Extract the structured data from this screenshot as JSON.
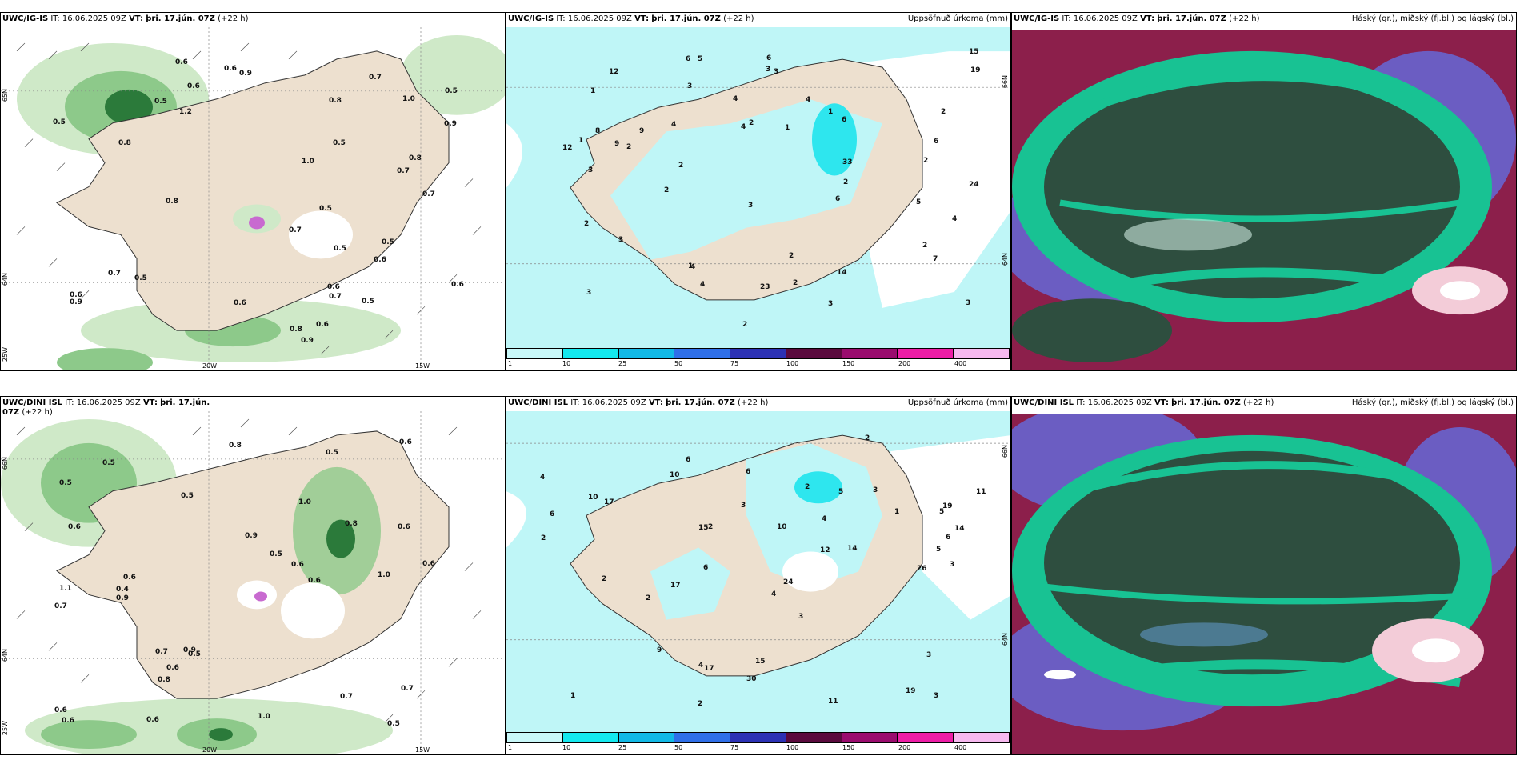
{
  "panels": [
    {
      "model": "UWC/IG-IS",
      "it_label": "IT:",
      "it_value": "16.06.2025 09Z",
      "vt_label": "VT:",
      "vt_value": "þri. 17.jún. 07Z",
      "lead": "(+22 h)",
      "right_title": "",
      "lat_labels": [
        "65N",
        "64N",
        "25W"
      ],
      "lon_labels": [
        "20W",
        "15W"
      ],
      "value_labels": [
        "0.5",
        "0.5",
        "0.6",
        "0.6",
        "0.8",
        "0.8",
        "0.7",
        "0.5",
        "0.7",
        "0.6",
        "0.5",
        "0.9",
        "0.7",
        "0.8",
        "0.5",
        "0.6",
        "0.5",
        "0.6",
        "0.9",
        "0.7",
        "0.6",
        "0.5",
        "0.5",
        "0.7",
        "1.0",
        "0.6",
        "0.6",
        "0.9",
        "0.8",
        "0.5",
        "0.8",
        "1.0",
        "0.9",
        "1.2",
        "0.7",
        "0.6"
      ]
    },
    {
      "model": "UWC/IG-IS",
      "it_label": "IT:",
      "it_value": "16.06.2025 09Z",
      "vt_label": "VT:",
      "vt_value": "þri. 17.jún. 07Z",
      "lead": "(+22 h)",
      "right_title": "Uppsöfnuð úrkoma (mm)",
      "lat_labels": [
        "66N",
        "64N"
      ],
      "value_labels": [
        "2",
        "4",
        "2",
        "1",
        "2",
        "3",
        "2",
        "3",
        "4",
        "6",
        "5",
        "4",
        "8",
        "4",
        "6",
        "3",
        "2",
        "4",
        "15",
        "33",
        "23",
        "12",
        "9",
        "19",
        "14",
        "24",
        "9",
        "3",
        "4",
        "2",
        "6",
        "7",
        "5",
        "12",
        "6",
        "2",
        "4",
        "3",
        "2",
        "1",
        "3",
        "3",
        "1",
        "2",
        "3",
        "1",
        "2",
        "3",
        "6",
        "1",
        "2",
        "2"
      ],
      "legend_ticks": [
        "1",
        "10",
        "25",
        "50",
        "75",
        "100",
        "150",
        "200",
        "400"
      ]
    },
    {
      "model": "UWC/IG-IS",
      "it_label": "IT:",
      "it_value": "16.06.2025 09Z",
      "vt_label": "VT:",
      "vt_value": "þri. 17.jún. 07Z",
      "lead": "(+22 h)",
      "right_title": "Háský (gr.), miðský (fj.bl.) og lágský (bl.)"
    },
    {
      "model": "UWC/DINI ISL",
      "it_label": "IT:",
      "it_value": "16.06.2025 09Z",
      "vt_label": "VT:",
      "vt_value": "þri. 17.jún. 07Z",
      "lead": "(+22 h)",
      "right_title": "",
      "lat_labels": [
        "66N",
        "64N",
        "25W"
      ],
      "lon_labels": [
        "20W",
        "15W"
      ],
      "value_labels": [
        "0.5",
        "0.6",
        "0.6",
        "0.5",
        "0.8",
        "0.5",
        "0.6",
        "0.7",
        "0.5",
        "0.7",
        "0.6",
        "1.1",
        "0.6",
        "0.5",
        "0.7",
        "0.8",
        "1.0",
        "0.9",
        "0.5",
        "0.6",
        "1.0",
        "0.8",
        "0.6",
        "0.6",
        "0.4",
        "0.5",
        "0.6",
        "0.9",
        "0.7",
        "0.9",
        "1.0",
        "0.6",
        "0.6"
      ]
    },
    {
      "model": "UWC/DINI ISL",
      "it_label": "IT:",
      "it_value": "16.06.2025 09Z",
      "vt_label": "VT:",
      "vt_value": "þri. 17.jún. 07Z",
      "lead": "(+22 h)",
      "right_title": "Uppsöfnuð úrkoma (mm)",
      "lat_labels": [
        "66N",
        "64N"
      ],
      "value_labels": [
        "4",
        "4",
        "2",
        "3",
        "2",
        "3",
        "15",
        "14",
        "11",
        "17",
        "30",
        "10",
        "9",
        "11",
        "14",
        "6",
        "19",
        "10",
        "6",
        "6",
        "17",
        "24",
        "15",
        "26",
        "17",
        "12",
        "2",
        "3",
        "10",
        "19",
        "3",
        "2",
        "3",
        "2",
        "4",
        "2",
        "1",
        "1",
        "2",
        "3",
        "5",
        "6",
        "5",
        "4",
        "5",
        "6"
      ],
      "legend_ticks": [
        "1",
        "10",
        "25",
        "50",
        "75",
        "100",
        "150",
        "200",
        "400"
      ]
    },
    {
      "model": "UWC/DINI ISL",
      "it_label": "IT:",
      "it_value": "16.06.2025 09Z",
      "vt_label": "VT:",
      "vt_value": "þri. 17.jún. 07Z",
      "lead": "(+22 h)",
      "right_title": "Háský (gr.), miðský (fj.bl.) og lágský (bl.)"
    }
  ],
  "colors": {
    "land": "#ede0cf",
    "green_light": "#cfe9c8",
    "green_mid": "#8dc98a",
    "green_dark": "#2b7a3a",
    "cyan_light": "#bff6f7",
    "cyan": "#2ee6ee",
    "cloud_dark": "#2e4e3f",
    "cloud_teal": "#18c293",
    "cloud_purple": "#6b5dc2",
    "cloud_maroon": "#8c1f4b"
  },
  "legend_colors": [
    "#c9f8f9",
    "#14e9ef",
    "#12b9e6",
    "#2f6fe8",
    "#2c31b4",
    "#5a0a3d",
    "#9a0c6e",
    "#ed1da6",
    "#f6b9ef"
  ]
}
